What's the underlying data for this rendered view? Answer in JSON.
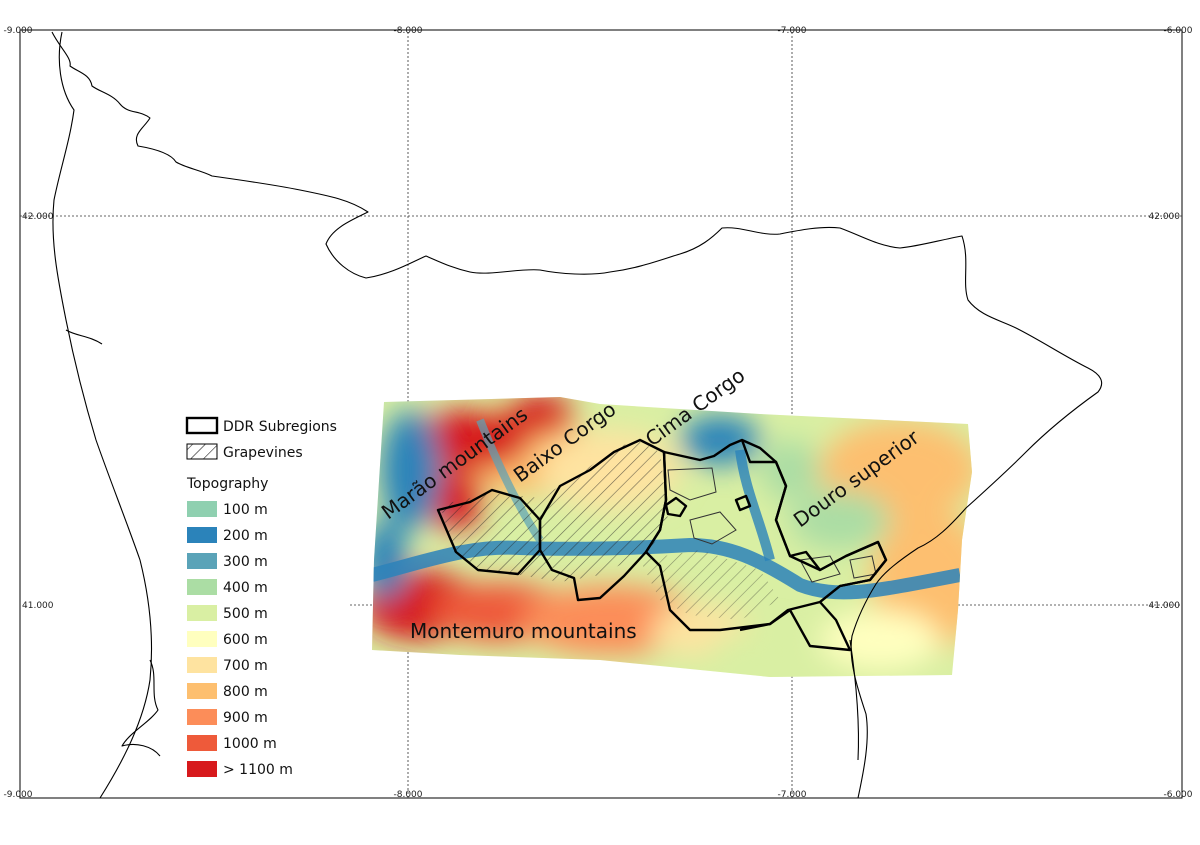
{
  "axes": {
    "top_ticks": [
      "-9.000",
      "-8.000",
      "-7.000",
      "-6.000"
    ],
    "bottom_ticks": [
      "-9.000",
      "-8.000",
      "-7.000",
      "-6.000"
    ],
    "left_ticks": [
      "42.000",
      "41.000"
    ],
    "right_ticks": [
      "42.000",
      "41.000"
    ]
  },
  "regions": {
    "marao": "Marão mountains",
    "baixo": "Baixo Corgo",
    "cima": "Cima Corgo",
    "douro": "Douro superior",
    "montemuro": "Montemuro mountains"
  },
  "legend": {
    "subregions": "DDR Subregions",
    "grapevines": "Grapevines",
    "topography_title": "Topography",
    "classes": [
      {
        "label": "100 m",
        "color": "#8fd0b0"
      },
      {
        "label": "200 m",
        "color": "#2b83ba"
      },
      {
        "label": "300 m",
        "color": "#5aa3b8"
      },
      {
        "label": "400 m",
        "color": "#abdda4"
      },
      {
        "label": "500 m",
        "color": "#d9efa3"
      },
      {
        "label": "600 m",
        "color": "#ffffbf"
      },
      {
        "label": "700 m",
        "color": "#fee3a0"
      },
      {
        "label": "800 m",
        "color": "#fdbf6f"
      },
      {
        "label": "900 m",
        "color": "#fc8d59"
      },
      {
        "label": "1000 m",
        "color": "#ee5a3a"
      },
      {
        "label": "> 1100 m",
        "color": "#d7191c"
      }
    ]
  }
}
